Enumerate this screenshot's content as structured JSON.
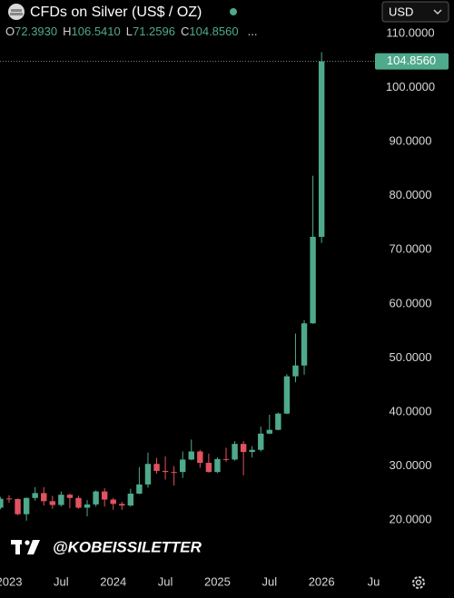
{
  "chart_data": {
    "type": "candlestick",
    "title": "CFDs on Silver (US$ / OZ)",
    "currency": "USD",
    "header_keys": [
      "O",
      "H",
      "L",
      "C"
    ],
    "header_values": [
      "72.3930",
      "106.5410",
      "71.2596",
      "104.8560"
    ],
    "more": "...",
    "watermark": "@KOBEISSILETTER",
    "last_price": {
      "value": 104.856,
      "label": "104.8560"
    },
    "categories": [
      null,
      "2023",
      null,
      null,
      null,
      null,
      null,
      "Jul",
      null,
      null,
      null,
      null,
      null,
      "2024",
      null,
      null,
      null,
      null,
      null,
      "Jul",
      null,
      null,
      null,
      null,
      null,
      "2025",
      null,
      null,
      null,
      null,
      null,
      "Jul",
      null,
      null,
      null,
      null,
      null,
      "2026",
      null,
      null,
      null,
      null,
      null,
      "Ju"
    ],
    "open": [
      22.3,
      24.0,
      23.9,
      21.1,
      24.1,
      25.0,
      23.5,
      22.8,
      24.7,
      24.1,
      22.3,
      22.9,
      25.3,
      23.8,
      23.0,
      22.7,
      24.9,
      26.6,
      30.4,
      29.1,
      28.9,
      28.9,
      31.2,
      32.7,
      30.6,
      28.9,
      31.3,
      31.2,
      34.1,
      32.6,
      33.0,
      36.0,
      36.7,
      39.7,
      46.6,
      48.6,
      56.4,
      72.393,
      null,
      null,
      null,
      null,
      null,
      null
    ],
    "high": [
      24.3,
      24.6,
      24.0,
      24.2,
      26.1,
      26.1,
      24.5,
      25.3,
      24.9,
      24.5,
      23.7,
      25.5,
      25.9,
      24.1,
      23.4,
      25.8,
      29.8,
      32.5,
      31.5,
      31.8,
      30.0,
      32.7,
      34.9,
      33.0,
      32.3,
      31.6,
      33.4,
      34.6,
      34.6,
      33.7,
      37.3,
      39.5,
      39.9,
      47.0,
      54.5,
      57.0,
      83.7,
      106.541,
      null,
      null,
      null,
      null,
      null,
      null
    ],
    "low": [
      22.0,
      23.2,
      20.9,
      19.9,
      23.6,
      22.7,
      22.1,
      22.5,
      22.2,
      22.1,
      20.7,
      22.5,
      22.5,
      21.9,
      21.9,
      22.5,
      24.8,
      26.0,
      28.6,
      27.5,
      26.4,
      27.8,
      31.1,
      29.7,
      28.8,
      28.7,
      30.8,
      31.0,
      28.3,
      31.6,
      32.7,
      35.9,
      36.6,
      39.6,
      45.5,
      46.9,
      56.3,
      71.2596,
      null,
      null,
      null,
      null,
      null,
      null
    ],
    "close": [
      23.95,
      23.9,
      21.1,
      24.1,
      25.0,
      23.5,
      22.8,
      24.7,
      24.1,
      22.3,
      22.9,
      25.3,
      23.8,
      23.0,
      22.7,
      24.9,
      26.6,
      30.4,
      29.1,
      28.9,
      28.8,
      31.2,
      32.7,
      30.6,
      28.9,
      31.3,
      31.2,
      34.1,
      32.6,
      33.0,
      36.0,
      36.7,
      39.7,
      46.6,
      48.6,
      56.4,
      72.4,
      104.856,
      null,
      null,
      null,
      null,
      null,
      null
    ],
    "up_color": "#4fa98c",
    "down_color": "#e0535f",
    "ylim": [
      10.8,
      116.2
    ],
    "yticks": [
      {
        "value": 20,
        "label": "20.0000"
      },
      {
        "value": 30,
        "label": "30.0000"
      },
      {
        "value": 40,
        "label": "40.0000"
      },
      {
        "value": 50,
        "label": "50.0000"
      },
      {
        "value": 60,
        "label": "60.0000"
      },
      {
        "value": 70,
        "label": "70.0000"
      },
      {
        "value": 80,
        "label": "80.0000"
      },
      {
        "value": 90,
        "label": "90.0000"
      },
      {
        "value": 100,
        "label": "100.0000"
      },
      {
        "value": 110,
        "label": "110.0000"
      }
    ]
  }
}
